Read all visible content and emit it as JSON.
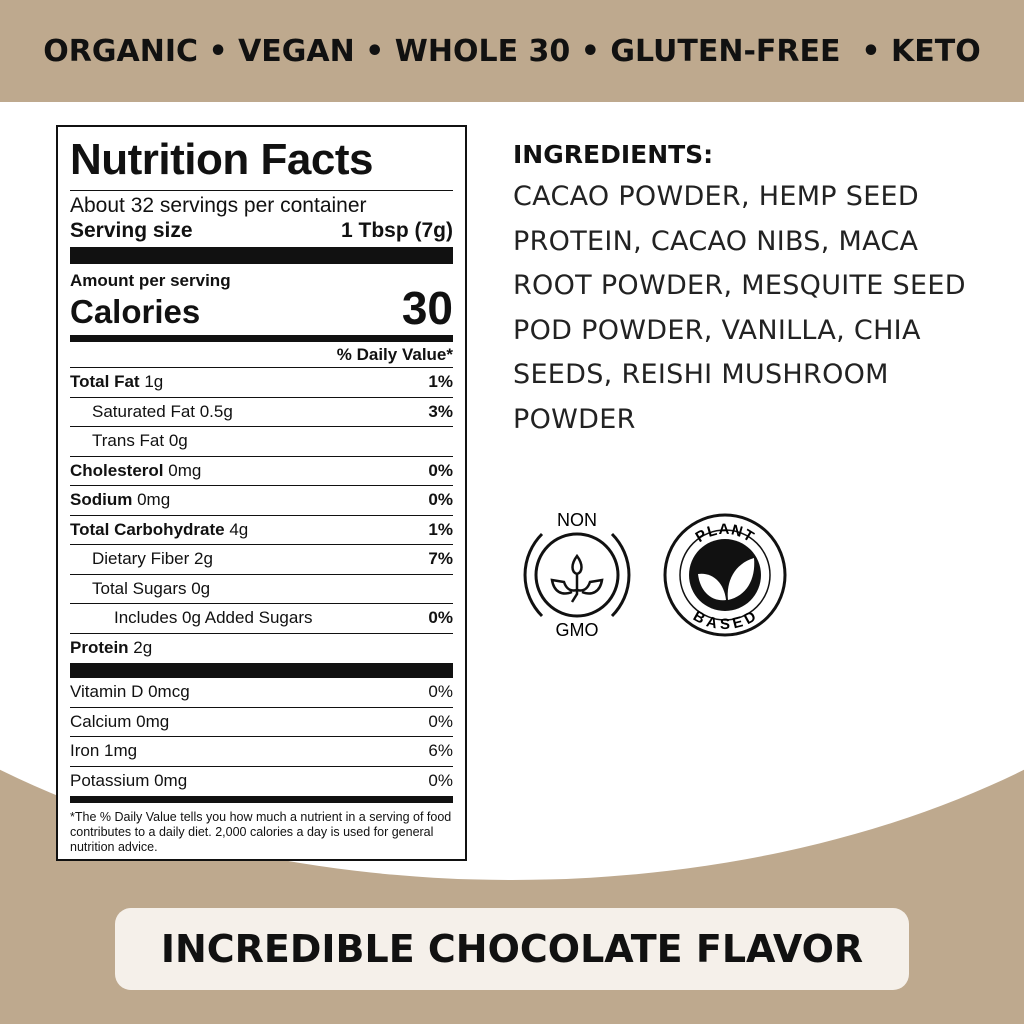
{
  "banner": {
    "claims": "ORGANIC • VEGAN • WHOLE 30 • GLUTEN-FREE  • KETO"
  },
  "nutrition": {
    "title": "Nutrition Facts",
    "servings": "About 32 servings per container",
    "serving_size_label": "Serving size",
    "serving_size_value": "1 Tbsp (7g)",
    "amount_per_serving": "Amount per serving",
    "calories_label": "Calories",
    "calories_value": "30",
    "dv_header": "% Daily Value*",
    "nutrients": [
      {
        "name": "Total Fat",
        "amount": "1g",
        "dv": "1%",
        "bold": true,
        "indent": 0
      },
      {
        "name": "Saturated Fat 0.5g",
        "amount": "",
        "dv": "3%",
        "bold": false,
        "indent": 1
      },
      {
        "name": "Trans Fat 0g",
        "amount": "",
        "dv": "",
        "bold": false,
        "indent": 1
      },
      {
        "name": "Cholesterol",
        "amount": "0mg",
        "dv": "0%",
        "bold": true,
        "indent": 0
      },
      {
        "name": "Sodium",
        "amount": "0mg",
        "dv": "0%",
        "bold": true,
        "indent": 0
      },
      {
        "name": "Total Carbohydrate",
        "amount": "4g",
        "dv": "1%",
        "bold": true,
        "indent": 0
      },
      {
        "name": "Dietary Fiber 2g",
        "amount": "",
        "dv": "7%",
        "bold": false,
        "indent": 1
      },
      {
        "name": "Total Sugars 0g",
        "amount": "",
        "dv": "",
        "bold": false,
        "indent": 1
      },
      {
        "name": "Includes 0g Added Sugars",
        "amount": "",
        "dv": "0%",
        "bold": false,
        "indent": 2
      },
      {
        "name": "Protein",
        "amount": "2g",
        "dv": "",
        "bold": true,
        "indent": 0
      }
    ],
    "vitamins": [
      {
        "name": "Vitamin D 0mcg",
        "dv": "0%"
      },
      {
        "name": "Calcium 0mg",
        "dv": "0%"
      },
      {
        "name": "Iron 1mg",
        "dv": "6%"
      },
      {
        "name": "Potassium 0mg",
        "dv": "0%"
      }
    ],
    "footnote": "*The % Daily Value tells you how much a nutrient in a serving of food contributes to a daily diet. 2,000 calories a day is used for general nutrition advice."
  },
  "ingredients": {
    "heading": "INGREDIENTS:",
    "text": "CACAO POWDER, HEMP SEED PROTEIN, CACAO NIBS, MACA ROOT POWDER, MESQUITE SEED POD POWDER, VANILLA, CHIA SEEDS, REISHI MUSHROOM POWDER"
  },
  "badges": {
    "non_gmo_top": "NON",
    "non_gmo_bottom": "GMO",
    "plant_top": "PLANT",
    "plant_bottom": "BASED",
    "icons": [
      "sprout-icon",
      "leaves-icon"
    ]
  },
  "tagline": "INCREDIBLE CHOCOLATE FLAVOR",
  "colors": {
    "tan": "#bea98e",
    "pill": "#f5f0ea",
    "text": "#111111"
  }
}
